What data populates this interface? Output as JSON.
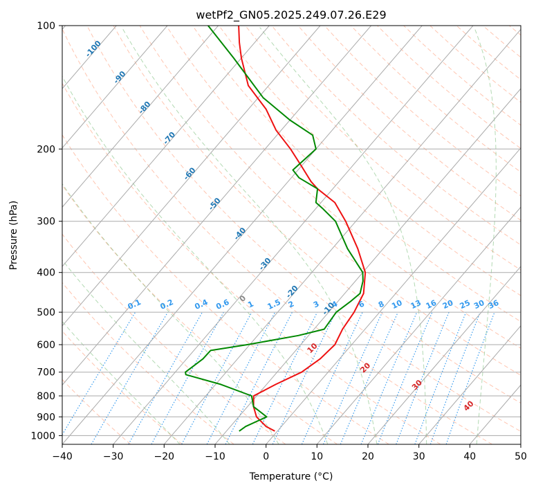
{
  "chart_data": {
    "type": "skewt",
    "title": "wetPf2_GN05.2025.249.07.26.E29",
    "xlabel": "Temperature (°C)",
    "ylabel": "Pressure (hPa)",
    "xlim": [
      -40,
      50
    ],
    "ylim": [
      1050,
      100
    ],
    "y_scale": "log",
    "x_ticks": [
      "−40",
      "−30",
      "−20",
      "−10",
      "0",
      "10",
      "20",
      "30",
      "40",
      "50"
    ],
    "x_tick_values": [
      -40,
      -30,
      -20,
      -10,
      0,
      10,
      20,
      30,
      40,
      50
    ],
    "y_ticks": [
      "100",
      "200",
      "300",
      "400",
      "500",
      "600",
      "700",
      "800",
      "900",
      "1000"
    ],
    "y_tick_values": [
      100,
      200,
      300,
      400,
      500,
      600,
      700,
      800,
      900,
      1000
    ],
    "grid": true,
    "series": [
      {
        "color": "#ee1111",
        "role": "temperature",
        "points": [
          [
            975,
            -0.5
          ],
          [
            950,
            -3
          ],
          [
            900,
            -6.5
          ],
          [
            850,
            -8.8
          ],
          [
            800,
            -10.6
          ],
          [
            750,
            -8.2
          ],
          [
            700,
            -5.2
          ],
          [
            650,
            -3.8
          ],
          [
            600,
            -3.3
          ],
          [
            550,
            -4.4
          ],
          [
            500,
            -5
          ],
          [
            450,
            -6.3
          ],
          [
            400,
            -9.5
          ],
          [
            350,
            -15
          ],
          [
            300,
            -22
          ],
          [
            270,
            -27.3
          ],
          [
            250,
            -33
          ],
          [
            240,
            -35.5
          ],
          [
            220,
            -40
          ],
          [
            200,
            -45
          ],
          [
            180,
            -51
          ],
          [
            160,
            -56.5
          ],
          [
            140,
            -64
          ],
          [
            120,
            -70
          ],
          [
            110,
            -73
          ],
          [
            100,
            -76
          ]
        ]
      },
      {
        "color": "#008800",
        "role": "dewpoint",
        "points": [
          [
            975,
            -7.5
          ],
          [
            950,
            -7
          ],
          [
            900,
            -4.5
          ],
          [
            850,
            -8.8
          ],
          [
            800,
            -11
          ],
          [
            750,
            -19
          ],
          [
            710,
            -27.5
          ],
          [
            700,
            -28
          ],
          [
            650,
            -26.8
          ],
          [
            620,
            -26.7
          ],
          [
            600,
            -20.5
          ],
          [
            570,
            -12
          ],
          [
            550,
            -8
          ],
          [
            500,
            -8.5
          ],
          [
            470,
            -7.5
          ],
          [
            450,
            -7
          ],
          [
            420,
            -8.5
          ],
          [
            400,
            -10
          ],
          [
            350,
            -17
          ],
          [
            300,
            -24
          ],
          [
            280,
            -28.5
          ],
          [
            270,
            -31
          ],
          [
            250,
            -33
          ],
          [
            235,
            -38.5
          ],
          [
            225,
            -41
          ],
          [
            200,
            -40
          ],
          [
            185,
            -43
          ],
          [
            170,
            -50
          ],
          [
            150,
            -59
          ],
          [
            120,
            -71.5
          ],
          [
            100,
            -82
          ]
        ]
      }
    ],
    "isotherm_labels": [
      "-100",
      "-90",
      "-80",
      "-70",
      "-60",
      "-50",
      "-40",
      "-30",
      "-20",
      "-10"
    ],
    "isotherm_label_values": [
      -100,
      -90,
      -80,
      -70,
      -60,
      -50,
      -40,
      -30,
      -20,
      -10
    ],
    "isotherm_label_pressures": [
      115,
      135,
      160,
      190,
      232,
      275,
      325,
      385,
      450,
      495
    ],
    "moist_adiabat_labels": [
      "0",
      "10",
      "20",
      "30",
      "40"
    ],
    "moist_adiabat_label_values": [
      0,
      10,
      20,
      30,
      40
    ],
    "mixing_ratio_labels": [
      "0.1",
      "0.2",
      "0.4",
      "0.6",
      "1",
      "1.5",
      "2",
      "3",
      "4",
      "6",
      "8",
      "10",
      "13",
      "16",
      "20",
      "25",
      "30",
      "36"
    ],
    "mixing_ratio_values": [
      0.1,
      0.2,
      0.4,
      0.6,
      1,
      1.5,
      2,
      3,
      4,
      6,
      8,
      10,
      13,
      16,
      20,
      25,
      30,
      36
    ],
    "colors": {
      "isotherm": "#1f77b4",
      "mixing_ratio": "#3399ee",
      "moist_adiabat_label": "#d62728",
      "zero_label": "#888888",
      "dry_adiabat": "#ff7f50",
      "moist_adiabat": "#55aa55",
      "grid": "#aaaaaa"
    }
  }
}
